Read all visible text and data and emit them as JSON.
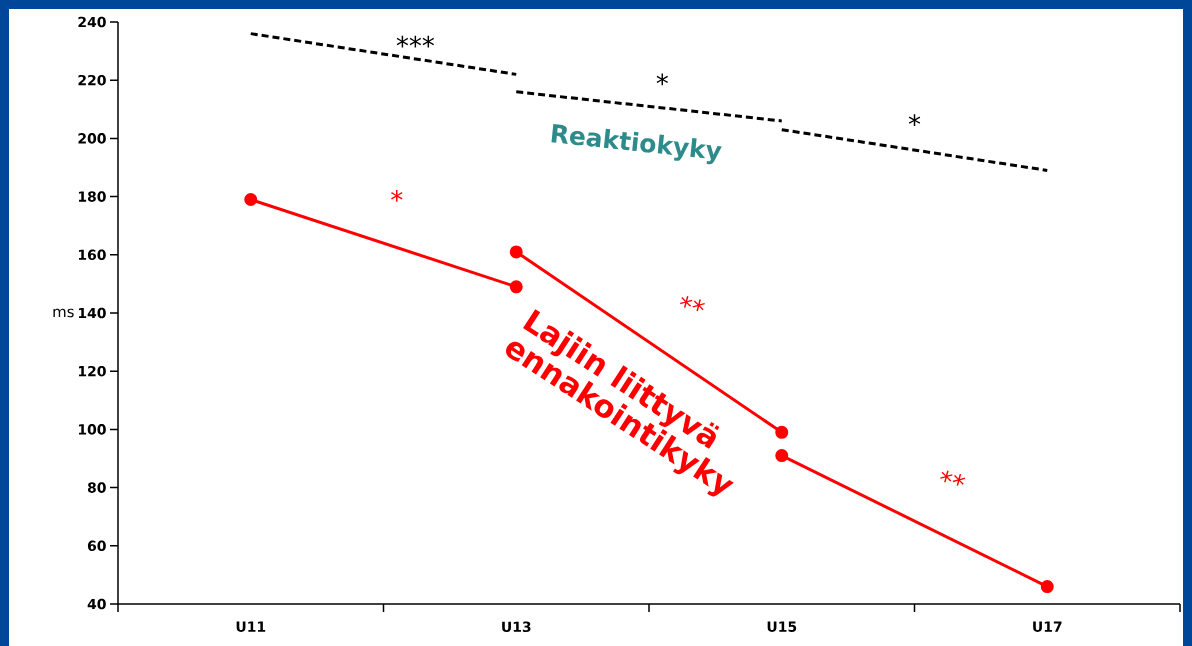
{
  "chart_data": {
    "type": "line",
    "categories": [
      "U11",
      "U13",
      "U15",
      "U17"
    ],
    "ylabel": "ms",
    "ylim": [
      40,
      240
    ],
    "yticks": [
      40,
      60,
      80,
      100,
      120,
      140,
      160,
      180,
      200,
      220,
      240
    ],
    "grid": false,
    "series": [
      {
        "color": "#000000",
        "line_style": "dashed",
        "marker": "none",
        "values": [
          236,
          222,
          null,
          null
        ]
      },
      {
        "color": "#000000",
        "line_style": "dashed",
        "marker": "none",
        "values": [
          null,
          216,
          206,
          null
        ]
      },
      {
        "color": "#000000",
        "line_style": "dashed",
        "marker": "none",
        "values": [
          null,
          null,
          203,
          189
        ]
      },
      {
        "color": "#ff0000",
        "line_style": "solid",
        "marker": "circle",
        "values": [
          179,
          149,
          null,
          null
        ]
      },
      {
        "color": "#ff0000",
        "line_style": "solid",
        "marker": "circle",
        "values": [
          null,
          161,
          99,
          null
        ]
      },
      {
        "color": "#ff0000",
        "line_style": "solid",
        "marker": "circle",
        "values": [
          null,
          null,
          91,
          46
        ]
      }
    ],
    "annotations": [
      "***",
      "*",
      "*",
      "*",
      "**",
      "**",
      "Reaktiokyky",
      "Lajiin liittyvä ennakointikyky"
    ]
  }
}
